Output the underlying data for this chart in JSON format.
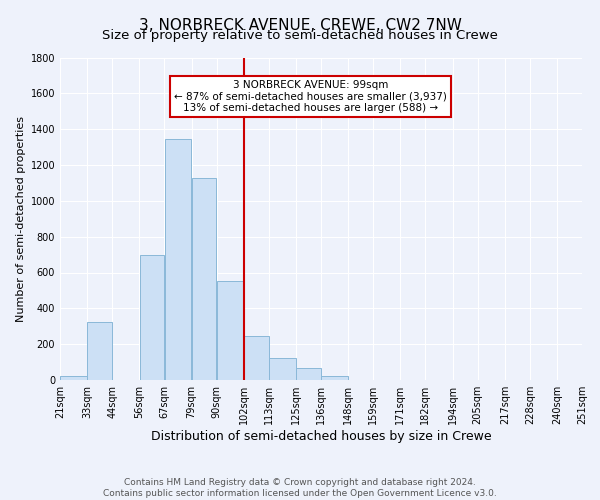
{
  "title": "3, NORBRECK AVENUE, CREWE, CW2 7NW",
  "subtitle": "Size of property relative to semi-detached houses in Crewe",
  "xlabel": "Distribution of semi-detached houses by size in Crewe",
  "ylabel": "Number of semi-detached properties",
  "bar_edges": [
    21,
    33,
    44,
    56,
    67,
    79,
    90,
    102,
    113,
    125,
    136,
    148,
    159,
    171,
    182,
    194,
    205,
    217,
    228,
    240,
    251
  ],
  "bar_heights": [
    25,
    325,
    0,
    695,
    1345,
    1130,
    550,
    245,
    125,
    65,
    25,
    0,
    0,
    0,
    0,
    0,
    0,
    0,
    0,
    0
  ],
  "bar_color": "#cce0f5",
  "bar_edgecolor": "#8ab8d8",
  "vline_x": 102,
  "vline_color": "#cc0000",
  "annotation_box_text": "3 NORBRECK AVENUE: 99sqm\n← 87% of semi-detached houses are smaller (3,937)\n13% of semi-detached houses are larger (588) →",
  "annotation_box_facecolor": "white",
  "annotation_box_edgecolor": "#cc0000",
  "ylim": [
    0,
    1800
  ],
  "yticks": [
    0,
    200,
    400,
    600,
    800,
    1000,
    1200,
    1400,
    1600,
    1800
  ],
  "xtick_labels": [
    "21sqm",
    "33sqm",
    "44sqm",
    "56sqm",
    "67sqm",
    "79sqm",
    "90sqm",
    "102sqm",
    "113sqm",
    "125sqm",
    "136sqm",
    "148sqm",
    "159sqm",
    "171sqm",
    "182sqm",
    "194sqm",
    "205sqm",
    "217sqm",
    "228sqm",
    "240sqm",
    "251sqm"
  ],
  "footer_line1": "Contains HM Land Registry data © Crown copyright and database right 2024.",
  "footer_line2": "Contains public sector information licensed under the Open Government Licence v3.0.",
  "title_fontsize": 11,
  "subtitle_fontsize": 9.5,
  "xlabel_fontsize": 9,
  "ylabel_fontsize": 8,
  "tick_fontsize": 7,
  "annotation_fontsize": 7.5,
  "footer_fontsize": 6.5,
  "background_color": "#eef2fb",
  "grid_color": "#ffffff",
  "plot_area_color": "#eef2fb"
}
